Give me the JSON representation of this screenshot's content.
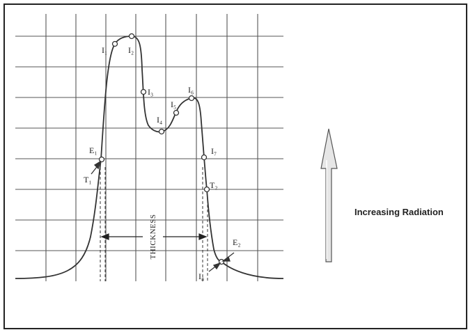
{
  "diagram": {
    "thickness_label": "THICKNESS",
    "side_label": "Increasing Radiation",
    "point_labels": {
      "I1": "I₁",
      "I2": "I₂",
      "I3": "I₃",
      "I4": "I₄",
      "I5": "I₅",
      "I6": "I₆",
      "I7": "I₇",
      "I8": "I₈",
      "E1": "E₁",
      "E2": "E₂",
      "T1": "T₁",
      "T2": "T₂"
    },
    "colors": {
      "frame": "#222222",
      "grid": "#555555",
      "curve": "#333333",
      "arrow_fill": "#e6e6e6",
      "arrow_stroke": "#555555"
    }
  }
}
